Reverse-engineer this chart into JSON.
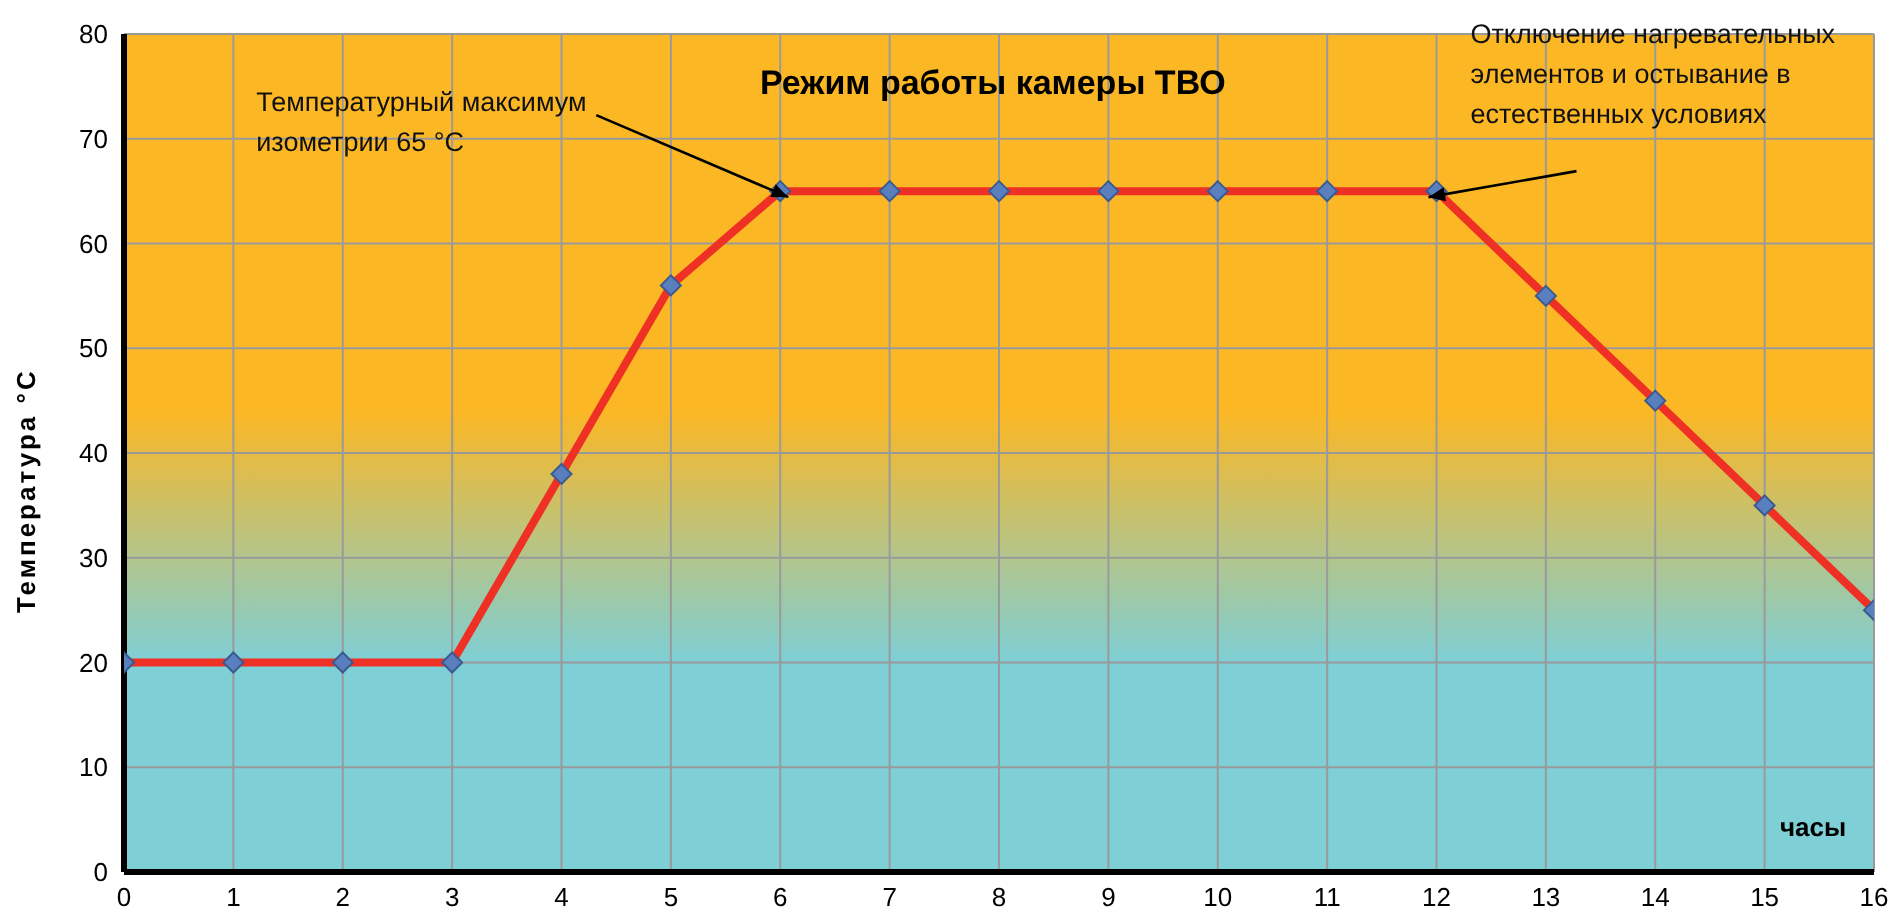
{
  "chart_data": {
    "type": "line",
    "title": "Режим работы камеры ТВО",
    "xlabel": "часы",
    "ylabel": "Температура °С",
    "x": [
      0,
      1,
      2,
      3,
      4,
      5,
      6,
      7,
      8,
      9,
      10,
      11,
      12,
      13,
      14,
      15,
      16
    ],
    "series": [
      {
        "color": "#ee3124",
        "values": [
          20,
          20,
          20,
          20,
          38,
          56,
          65,
          65,
          65,
          65,
          65,
          65,
          65,
          55,
          45,
          35,
          25
        ]
      }
    ],
    "xlim": [
      0,
      16
    ],
    "xticks": [
      0,
      1,
      2,
      3,
      4,
      5,
      6,
      7,
      8,
      9,
      10,
      11,
      12,
      13,
      14,
      15,
      16
    ],
    "ylim": [
      0,
      80
    ],
    "yticks": [
      0,
      10,
      20,
      30,
      40,
      50,
      60,
      70,
      80
    ],
    "annotations": [
      {
        "text": "Температурный максимум\nизометрии 65 °С",
        "x": 6,
        "y": 65
      },
      {
        "text": "Отключение нагревательных\nэлементов и остывание в\nестественных условиях",
        "x": 12,
        "y": 65
      }
    ],
    "grid": true,
    "marker": "diamond",
    "line_style": "solid",
    "legend": false
  }
}
